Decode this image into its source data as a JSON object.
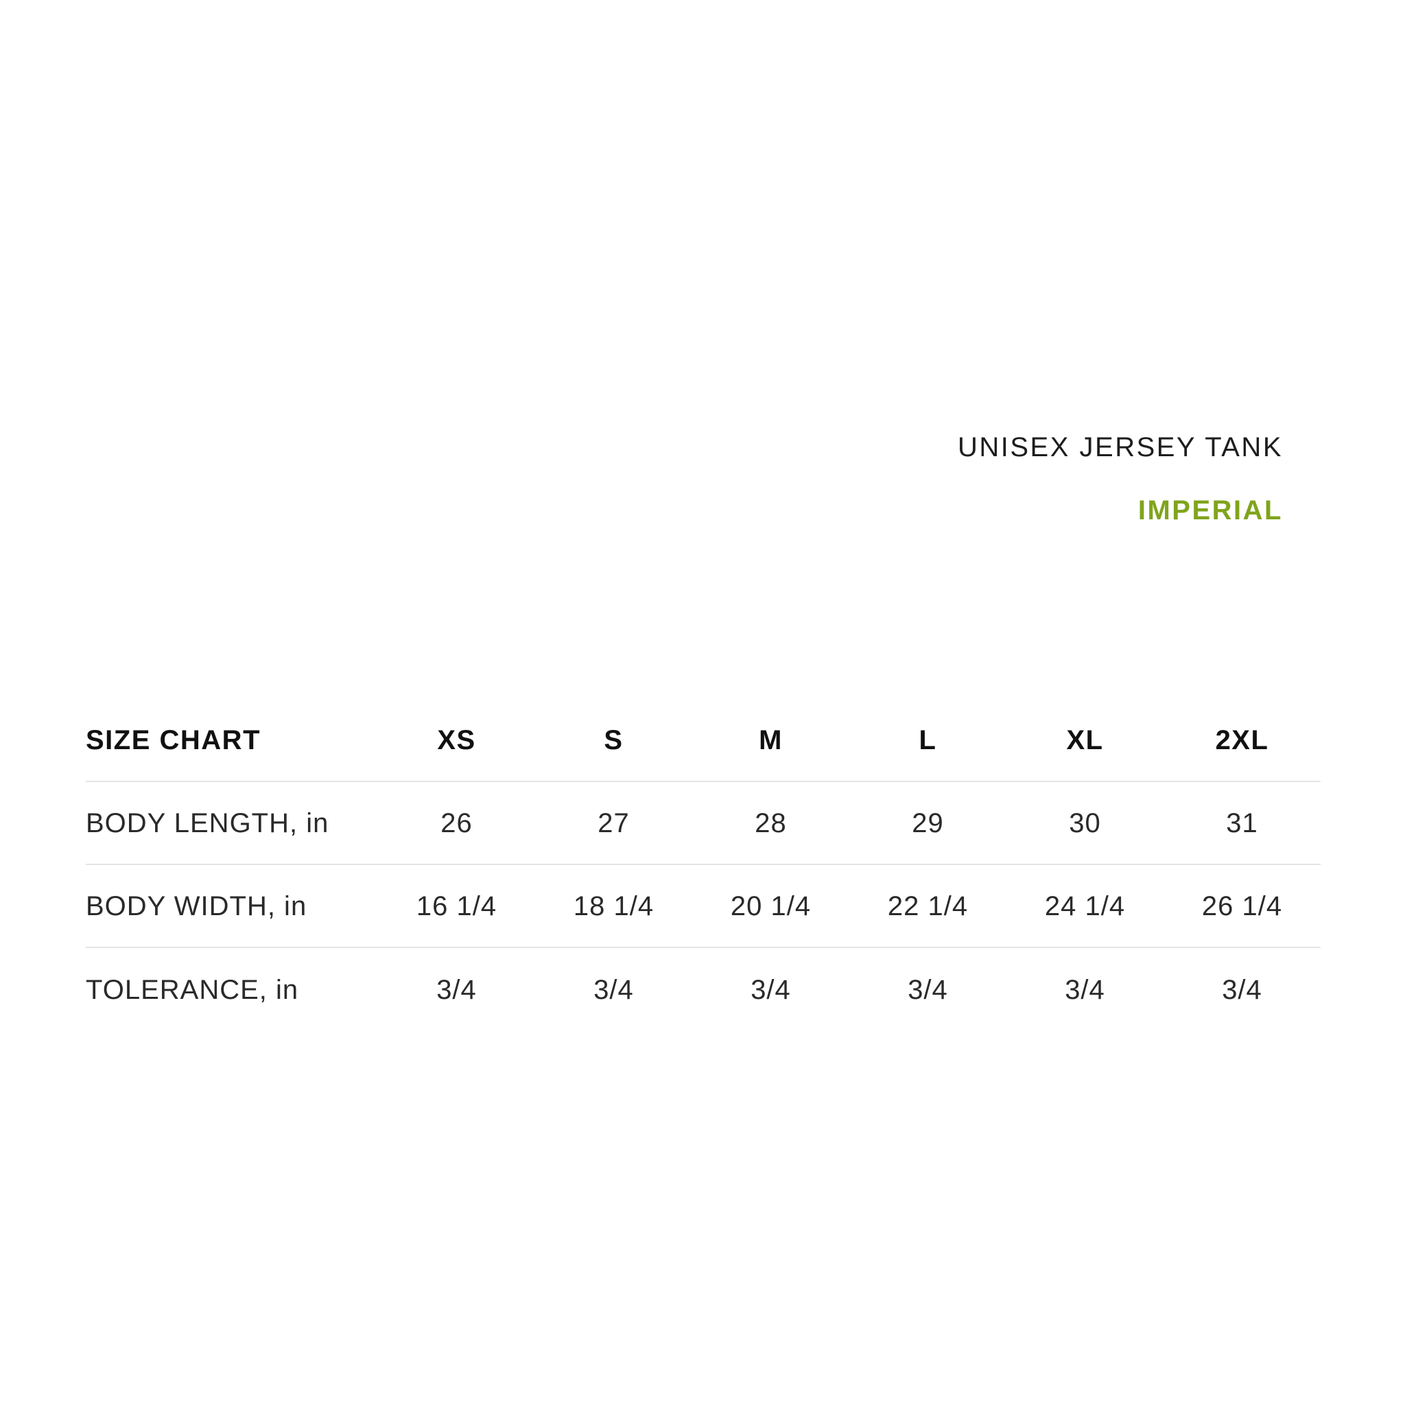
{
  "header": {
    "product_name": "UNISEX JERSEY TANK",
    "unit_label": "IMPERIAL"
  },
  "size_table": {
    "header_label": "SIZE CHART",
    "columns": [
      "XS",
      "S",
      "M",
      "L",
      "XL",
      "2XL"
    ],
    "rows": [
      {
        "label": "BODY LENGTH, in",
        "values": [
          "26",
          "27",
          "28",
          "29",
          "30",
          "31"
        ]
      },
      {
        "label": "BODY WIDTH, in",
        "values": [
          "16 1/4",
          "18 1/4",
          "20 1/4",
          "22 1/4",
          "24 1/4",
          "26 1/4"
        ]
      },
      {
        "label": "TOLERANCE, in",
        "values": [
          "3/4",
          "3/4",
          "3/4",
          "3/4",
          "3/4",
          "3/4"
        ]
      }
    ]
  },
  "colors": {
    "accent_green": "#80a41c",
    "divider": "#e4e4e4",
    "title_text": "#1d1d1d",
    "table_text": "#2a2a2a"
  },
  "chart_data": {
    "type": "table",
    "title": "UNISEX JERSEY TANK",
    "subtitle": "IMPERIAL",
    "columns": [
      "SIZE CHART",
      "XS",
      "S",
      "M",
      "L",
      "XL",
      "2XL"
    ],
    "rows": [
      [
        "BODY LENGTH, in",
        "26",
        "27",
        "28",
        "29",
        "30",
        "31"
      ],
      [
        "BODY WIDTH, in",
        "16 1/4",
        "18 1/4",
        "20 1/4",
        "22 1/4",
        "24 1/4",
        "26 1/4"
      ],
      [
        "TOLERANCE, in",
        "3/4",
        "3/4",
        "3/4",
        "3/4",
        "3/4",
        "3/4"
      ]
    ],
    "units": "inches",
    "layout_hints": {
      "title_alignment": "right",
      "grid": "horizontal-dividers-only",
      "header_style": "bold"
    }
  }
}
